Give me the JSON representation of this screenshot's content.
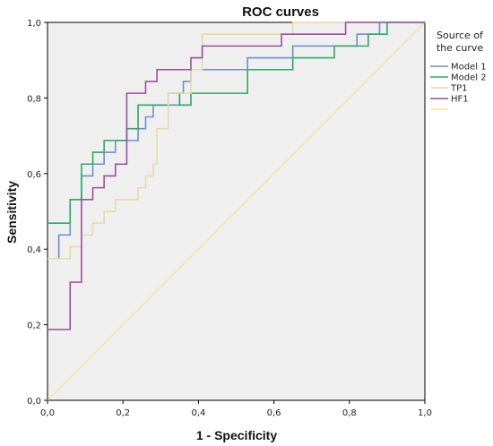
{
  "chart_data": {
    "type": "line",
    "title": "ROC curves",
    "xlabel": "1 - Specificity",
    "ylabel": "Sensitivity",
    "xlim": [
      0,
      1
    ],
    "ylim": [
      0,
      1
    ],
    "x_ticks": [
      "0,0",
      "0,2",
      "0,4",
      "0,6",
      "0,8",
      "1,0"
    ],
    "y_ticks": [
      "0,0",
      "0,2",
      "0,4",
      "0,6",
      "0,8",
      "1,0"
    ],
    "grid": false,
    "background": "#efefef",
    "legend": {
      "title": "Source of the curve",
      "position": "right"
    },
    "series": [
      {
        "name": "Model 1",
        "color": "#6f8fc8",
        "points": [
          [
            0,
            0.375
          ],
          [
            0.03,
            0.375
          ],
          [
            0.03,
            0.4375
          ],
          [
            0.06,
            0.4375
          ],
          [
            0.06,
            0.53125
          ],
          [
            0.09,
            0.53125
          ],
          [
            0.09,
            0.59375
          ],
          [
            0.12,
            0.59375
          ],
          [
            0.12,
            0.625
          ],
          [
            0.15,
            0.625
          ],
          [
            0.15,
            0.65625
          ],
          [
            0.18,
            0.65625
          ],
          [
            0.18,
            0.6875
          ],
          [
            0.24,
            0.6875
          ],
          [
            0.24,
            0.71875
          ],
          [
            0.26,
            0.71875
          ],
          [
            0.26,
            0.75
          ],
          [
            0.28,
            0.75
          ],
          [
            0.28,
            0.78125
          ],
          [
            0.35,
            0.78125
          ],
          [
            0.35,
            0.8125
          ],
          [
            0.36,
            0.8125
          ],
          [
            0.36,
            0.84375
          ],
          [
            0.38,
            0.84375
          ],
          [
            0.38,
            0.875
          ],
          [
            0.53,
            0.875
          ],
          [
            0.53,
            0.90625
          ],
          [
            0.65,
            0.90625
          ],
          [
            0.65,
            0.9375
          ],
          [
            0.82,
            0.9375
          ],
          [
            0.82,
            0.96875
          ],
          [
            0.88,
            0.96875
          ],
          [
            0.88,
            1.0
          ],
          [
            1.0,
            1.0
          ]
        ]
      },
      {
        "name": "Model 2",
        "color": "#2ea86a",
        "points": [
          [
            0,
            0.46875
          ],
          [
            0.06,
            0.46875
          ],
          [
            0.06,
            0.53125
          ],
          [
            0.09,
            0.53125
          ],
          [
            0.09,
            0.625
          ],
          [
            0.12,
            0.625
          ],
          [
            0.12,
            0.65625
          ],
          [
            0.15,
            0.65625
          ],
          [
            0.15,
            0.6875
          ],
          [
            0.21,
            0.6875
          ],
          [
            0.21,
            0.71875
          ],
          [
            0.24,
            0.71875
          ],
          [
            0.24,
            0.78125
          ],
          [
            0.32,
            0.78125
          ],
          [
            0.32,
            0.8125
          ],
          [
            0.35,
            0.8125
          ],
          [
            0.35,
            0.78125
          ],
          [
            0.38,
            0.78125
          ],
          [
            0.38,
            0.8125
          ],
          [
            0.53,
            0.8125
          ],
          [
            0.53,
            0.875
          ],
          [
            0.65,
            0.875
          ],
          [
            0.65,
            0.90625
          ],
          [
            0.76,
            0.90625
          ],
          [
            0.76,
            0.9375
          ],
          [
            0.85,
            0.9375
          ],
          [
            0.85,
            0.96875
          ],
          [
            0.9,
            0.96875
          ],
          [
            0.9,
            1.0
          ],
          [
            1.0,
            1.0
          ]
        ]
      },
      {
        "name": "TP1",
        "color": "#e3dca8",
        "points": [
          [
            0,
            0.375
          ],
          [
            0.06,
            0.375
          ],
          [
            0.06,
            0.40625
          ],
          [
            0.09,
            0.40625
          ],
          [
            0.09,
            0.4375
          ],
          [
            0.12,
            0.4375
          ],
          [
            0.12,
            0.46875
          ],
          [
            0.15,
            0.46875
          ],
          [
            0.15,
            0.5
          ],
          [
            0.18,
            0.5
          ],
          [
            0.18,
            0.53125
          ],
          [
            0.24,
            0.53125
          ],
          [
            0.24,
            0.5625
          ],
          [
            0.26,
            0.5625
          ],
          [
            0.26,
            0.59375
          ],
          [
            0.28,
            0.59375
          ],
          [
            0.28,
            0.625
          ],
          [
            0.29,
            0.625
          ],
          [
            0.29,
            0.71875
          ],
          [
            0.32,
            0.71875
          ],
          [
            0.32,
            0.8125
          ],
          [
            0.38,
            0.8125
          ],
          [
            0.38,
            0.875
          ],
          [
            0.41,
            0.875
          ],
          [
            0.41,
            0.96875
          ],
          [
            0.65,
            0.96875
          ],
          [
            0.65,
            1.0
          ],
          [
            1.0,
            1.0
          ]
        ]
      },
      {
        "name": "HF1",
        "color": "#9b4fa0",
        "points": [
          [
            0,
            0.1875
          ],
          [
            0.06,
            0.1875
          ],
          [
            0.06,
            0.3125
          ],
          [
            0.09,
            0.3125
          ],
          [
            0.09,
            0.53125
          ],
          [
            0.12,
            0.53125
          ],
          [
            0.12,
            0.5625
          ],
          [
            0.15,
            0.5625
          ],
          [
            0.15,
            0.59375
          ],
          [
            0.18,
            0.59375
          ],
          [
            0.18,
            0.625
          ],
          [
            0.21,
            0.625
          ],
          [
            0.21,
            0.8125
          ],
          [
            0.26,
            0.8125
          ],
          [
            0.26,
            0.84375
          ],
          [
            0.29,
            0.84375
          ],
          [
            0.29,
            0.875
          ],
          [
            0.38,
            0.875
          ],
          [
            0.38,
            0.90625
          ],
          [
            0.41,
            0.90625
          ],
          [
            0.41,
            0.9375
          ],
          [
            0.62,
            0.9375
          ],
          [
            0.62,
            0.96875
          ],
          [
            0.79,
            0.96875
          ],
          [
            0.79,
            1.0
          ],
          [
            1.0,
            1.0
          ]
        ]
      },
      {
        "name": "",
        "color": "#f2e68c",
        "legend_swatch_only": true,
        "points": [
          [
            0,
            0
          ],
          [
            1,
            1
          ]
        ]
      }
    ]
  }
}
